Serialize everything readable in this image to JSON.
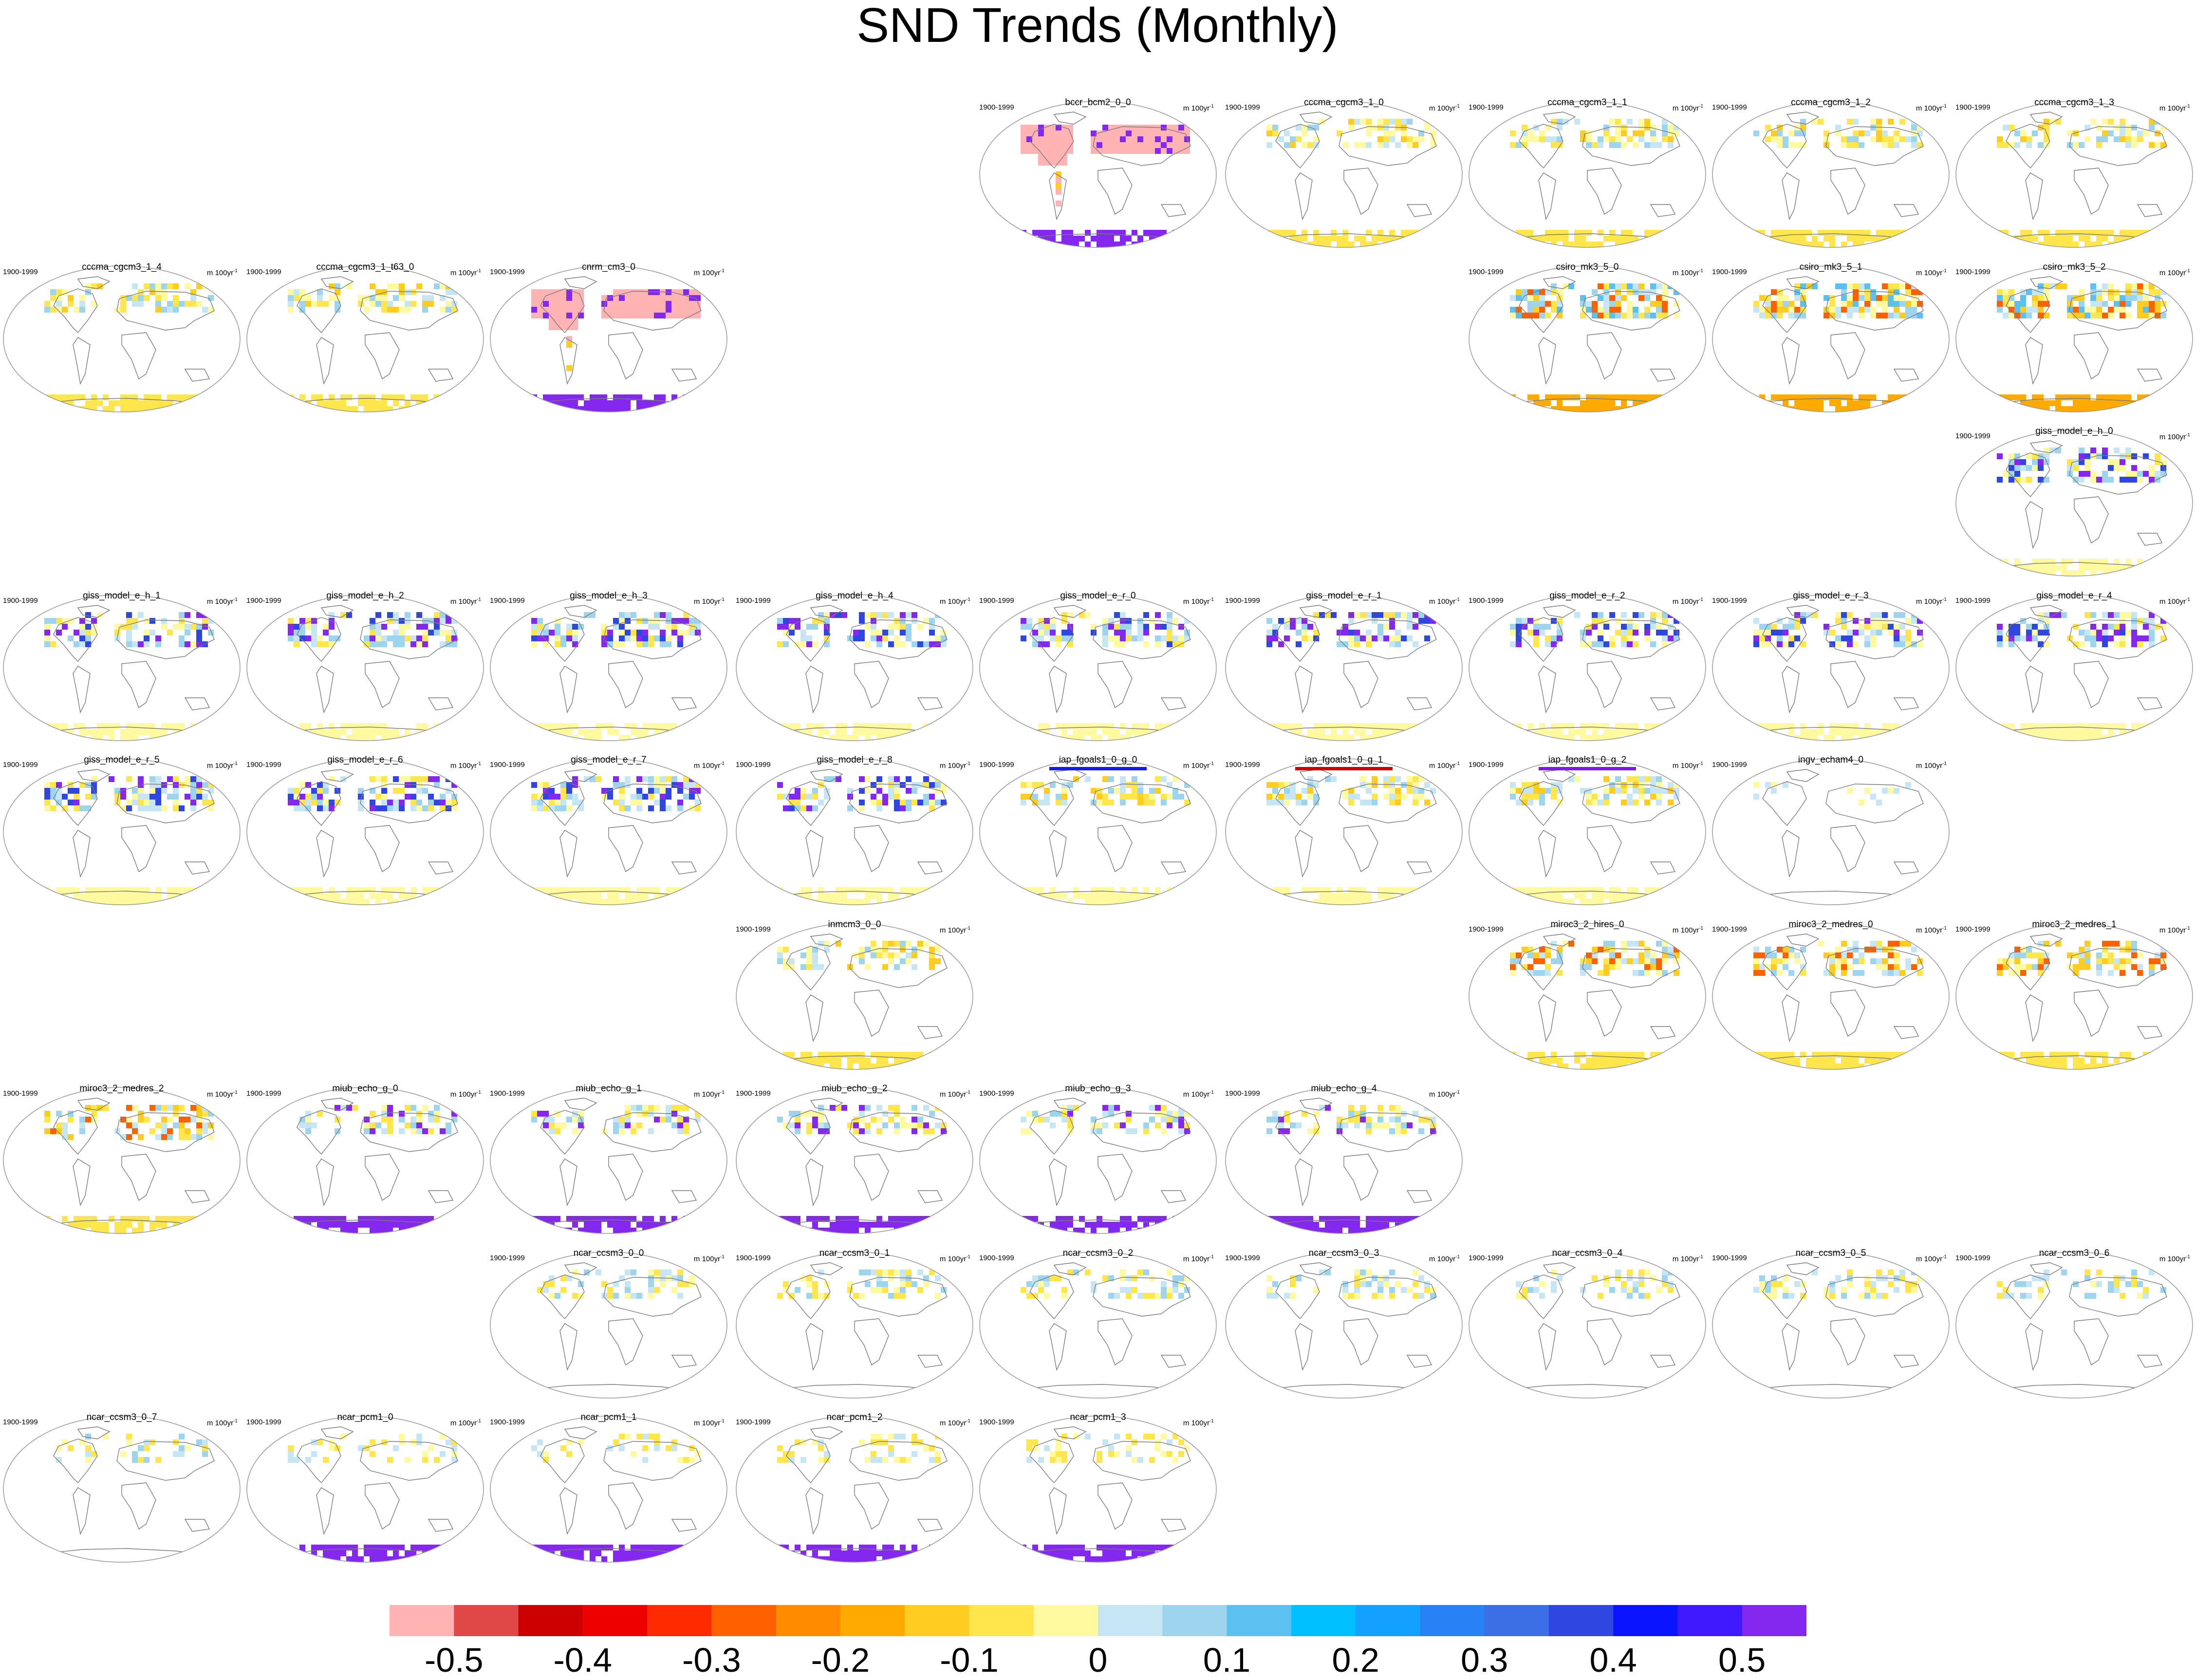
{
  "chart_data": {
    "type": "map-panel-grid",
    "title": "SND Trends (Monthly)",
    "panel_period": "1900-1999",
    "panel_unit": "m 100yr",
    "panel_unit_exponent": "-1",
    "colorbar": {
      "min": -0.55,
      "max": 0.55,
      "step": 0.05,
      "colors": [
        "#ffb3b3",
        "#e04848",
        "#cc0000",
        "#ee0000",
        "#ff2a00",
        "#ff6000",
        "#ff8c00",
        "#ffaa00",
        "#ffcc22",
        "#ffe64d",
        "#fff9a0",
        "#c6e6f5",
        "#9ed4ee",
        "#5cc1f0",
        "#00bfff",
        "#14a0ff",
        "#2882f5",
        "#3c6ee6",
        "#2f46e0",
        "#0a14ff",
        "#4019ff",
        "#8428f0"
      ],
      "tick_labels": [
        "-0.5",
        "-0.4",
        "-0.3",
        "-0.2",
        "-0.1",
        "0",
        "0.1",
        "0.2",
        "0.3",
        "0.4",
        "0.5"
      ],
      "tick_values": [
        -0.5,
        -0.4,
        -0.3,
        -0.2,
        -0.1,
        0,
        0.1,
        0.2,
        0.3,
        0.4,
        0.5
      ]
    },
    "panels": [
      {
        "name": "bccr_bcm2_0_0",
        "row": 0,
        "col": 4,
        "pattern": "bccr"
      },
      {
        "name": "cccma_cgcm3_1_0",
        "row": 0,
        "col": 5,
        "pattern": "cccma"
      },
      {
        "name": "cccma_cgcm3_1_1",
        "row": 0,
        "col": 6,
        "pattern": "cccma"
      },
      {
        "name": "cccma_cgcm3_1_2",
        "row": 0,
        "col": 7,
        "pattern": "cccma"
      },
      {
        "name": "cccma_cgcm3_1_3",
        "row": 0,
        "col": 8,
        "pattern": "cccma"
      },
      {
        "name": "cccma_cgcm3_1_4",
        "row": 1,
        "col": 0,
        "pattern": "cccma"
      },
      {
        "name": "cccma_cgcm3_1_t63_0",
        "row": 1,
        "col": 1,
        "pattern": "cccma"
      },
      {
        "name": "cnrm_cm3_0",
        "row": 1,
        "col": 2,
        "pattern": "bccr"
      },
      {
        "name": "csiro_mk3_5_0",
        "row": 1,
        "col": 6,
        "pattern": "csiro"
      },
      {
        "name": "csiro_mk3_5_1",
        "row": 1,
        "col": 7,
        "pattern": "csiro"
      },
      {
        "name": "csiro_mk3_5_2",
        "row": 1,
        "col": 8,
        "pattern": "csiro"
      },
      {
        "name": "giss_model_e_h_0",
        "row": 2,
        "col": 8,
        "pattern": "giss"
      },
      {
        "name": "giss_model_e_h_1",
        "row": 3,
        "col": 0,
        "pattern": "giss"
      },
      {
        "name": "giss_model_e_h_2",
        "row": 3,
        "col": 1,
        "pattern": "giss"
      },
      {
        "name": "giss_model_e_h_3",
        "row": 3,
        "col": 2,
        "pattern": "giss"
      },
      {
        "name": "giss_model_e_h_4",
        "row": 3,
        "col": 3,
        "pattern": "giss"
      },
      {
        "name": "giss_model_e_r_0",
        "row": 3,
        "col": 4,
        "pattern": "giss"
      },
      {
        "name": "giss_model_e_r_1",
        "row": 3,
        "col": 5,
        "pattern": "giss"
      },
      {
        "name": "giss_model_e_r_2",
        "row": 3,
        "col": 6,
        "pattern": "giss"
      },
      {
        "name": "giss_model_e_r_3",
        "row": 3,
        "col": 7,
        "pattern": "giss"
      },
      {
        "name": "giss_model_e_r_4",
        "row": 3,
        "col": 8,
        "pattern": "giss"
      },
      {
        "name": "giss_model_e_r_5",
        "row": 4,
        "col": 0,
        "pattern": "giss"
      },
      {
        "name": "giss_model_e_r_6",
        "row": 4,
        "col": 1,
        "pattern": "giss"
      },
      {
        "name": "giss_model_e_r_7",
        "row": 4,
        "col": 2,
        "pattern": "giss"
      },
      {
        "name": "giss_model_e_r_8",
        "row": 4,
        "col": 3,
        "pattern": "giss"
      },
      {
        "name": "iap_fgoals1_0_g_0",
        "row": 4,
        "col": 4,
        "pattern": "iap",
        "highlight": "#1a1ae6"
      },
      {
        "name": "iap_fgoals1_0_g_1",
        "row": 4,
        "col": 5,
        "pattern": "iap",
        "highlight": "#cc0000"
      },
      {
        "name": "iap_fgoals1_0_g_2",
        "row": 4,
        "col": 6,
        "pattern": "iap",
        "highlight": "#7a1fe0"
      },
      {
        "name": "ingv_echam4_0",
        "row": 4,
        "col": 7,
        "pattern": "sparse"
      },
      {
        "name": "inmcm3_0_0",
        "row": 5,
        "col": 3,
        "pattern": "cccma"
      },
      {
        "name": "miroc3_2_hires_0",
        "row": 5,
        "col": 6,
        "pattern": "miroc"
      },
      {
        "name": "miroc3_2_medres_0",
        "row": 5,
        "col": 7,
        "pattern": "miroc"
      },
      {
        "name": "miroc3_2_medres_1",
        "row": 5,
        "col": 8,
        "pattern": "miroc"
      },
      {
        "name": "miroc3_2_medres_2",
        "row": 6,
        "col": 0,
        "pattern": "miroc"
      },
      {
        "name": "miub_echo_g_0",
        "row": 6,
        "col": 1,
        "pattern": "miub"
      },
      {
        "name": "miub_echo_g_1",
        "row": 6,
        "col": 2,
        "pattern": "miub"
      },
      {
        "name": "miub_echo_g_2",
        "row": 6,
        "col": 3,
        "pattern": "miub"
      },
      {
        "name": "miub_echo_g_3",
        "row": 6,
        "col": 4,
        "pattern": "miub"
      },
      {
        "name": "miub_echo_g_4",
        "row": 6,
        "col": 5,
        "pattern": "miub"
      },
      {
        "name": "ncar_ccsm3_0_0",
        "row": 7,
        "col": 2,
        "pattern": "ncar"
      },
      {
        "name": "ncar_ccsm3_0_1",
        "row": 7,
        "col": 3,
        "pattern": "ncar"
      },
      {
        "name": "ncar_ccsm3_0_2",
        "row": 7,
        "col": 4,
        "pattern": "ncar"
      },
      {
        "name": "ncar_ccsm3_0_3",
        "row": 7,
        "col": 5,
        "pattern": "ncar"
      },
      {
        "name": "ncar_ccsm3_0_4",
        "row": 7,
        "col": 6,
        "pattern": "ncar"
      },
      {
        "name": "ncar_ccsm3_0_5",
        "row": 7,
        "col": 7,
        "pattern": "ncar"
      },
      {
        "name": "ncar_ccsm3_0_6",
        "row": 7,
        "col": 8,
        "pattern": "ncar"
      },
      {
        "name": "ncar_ccsm3_0_7",
        "row": 8,
        "col": 0,
        "pattern": "ncar"
      },
      {
        "name": "ncar_pcm1_0",
        "row": 8,
        "col": 1,
        "pattern": "pcm"
      },
      {
        "name": "ncar_pcm1_1",
        "row": 8,
        "col": 2,
        "pattern": "pcm"
      },
      {
        "name": "ncar_pcm1_2",
        "row": 8,
        "col": 3,
        "pattern": "pcm"
      },
      {
        "name": "ncar_pcm1_3",
        "row": 8,
        "col": 4,
        "pattern": "pcm"
      }
    ]
  }
}
